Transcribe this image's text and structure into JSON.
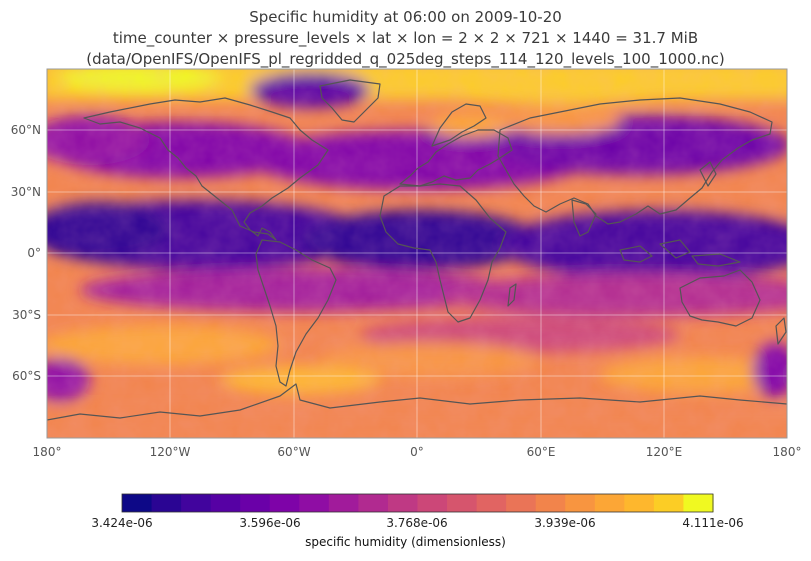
{
  "title": {
    "line1": "Specific humidity at 06:00 on 2009-10-20",
    "line2": "time_counter × pressure_levels × lat × lon = 2 × 2 × 721 × 1440 = 31.7 MiB",
    "line3": "(data/OpenIFS/OpenIFS_pl_regridded_q_025deg_steps_114_120_levels_100_1000.nc)"
  },
  "map": {
    "projection": "equirectangular",
    "lon_range": [
      -180,
      180
    ],
    "lat_range": [
      -90,
      90
    ],
    "lon_ticks": [
      "180°",
      "120°W",
      "60°W",
      "0°",
      "60°E",
      "120°E",
      "180°"
    ],
    "lat_ticks": [
      "60°N",
      "30°N",
      "0°",
      "30°S",
      "60°S"
    ],
    "gridlines": true,
    "coastline_color": "#555555",
    "colormap": "plasma"
  },
  "colorbar": {
    "label": "specific humidity (dimensionless)",
    "min": 3.424e-06,
    "max": 4.111e-06,
    "tick_labels": [
      "3.424e-06",
      "3.596e-06",
      "3.768e-06",
      "3.939e-06",
      "4.111e-06"
    ],
    "n_levels": 20,
    "colors": [
      "#0d0887",
      "#2a0593",
      "#41049d",
      "#5601a4",
      "#6a00a8",
      "#7e03a8",
      "#8f0da4",
      "#a11b9b",
      "#b12a90",
      "#bf3984",
      "#cc4778",
      "#d6556d",
      "#e16462",
      "#ea7457",
      "#f2844b",
      "#f89540",
      "#fca636",
      "#feb72d",
      "#fccd25",
      "#f0f921"
    ]
  }
}
